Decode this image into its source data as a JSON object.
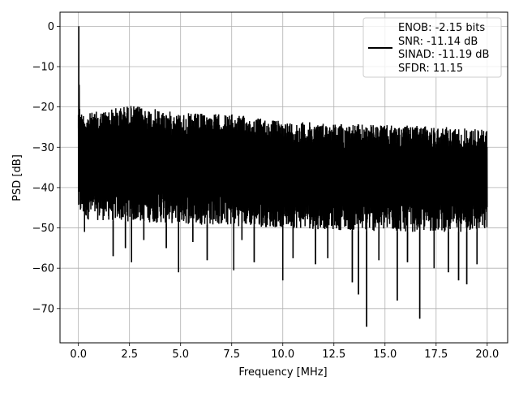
{
  "chart_data": {
    "type": "line",
    "title": "",
    "xlabel": "Frequency [MHz]",
    "ylabel": "PSD [dB]",
    "xlim": [
      -0.9,
      21.0
    ],
    "ylim": [
      -78.5,
      3.5
    ],
    "xticks": [
      0.0,
      2.5,
      5.0,
      7.5,
      10.0,
      12.5,
      15.0,
      17.5,
      20.0
    ],
    "xtick_labels": [
      "0.0",
      "2.5",
      "5.0",
      "7.5",
      "10.0",
      "12.5",
      "15.0",
      "17.5",
      "20.0"
    ],
    "yticks": [
      0,
      -10,
      -20,
      -30,
      -40,
      -50,
      -60,
      -70
    ],
    "ytick_labels": [
      "0",
      "−10",
      "−20",
      "−30",
      "−40",
      "−50",
      "−60",
      "−70"
    ],
    "grid": true,
    "legend_position": "top-right",
    "legend_lines": [
      "ENOB: -2.15 bits",
      "SNR: -11.14 dB",
      "SINAD: -11.19 dB",
      "SFDR: 11.15"
    ],
    "line_color": "#000000",
    "series": [
      {
        "x": [
          0.0,
          0.02,
          0.04,
          0.06,
          0.1,
          0.2,
          0.4,
          1.5,
          2.5,
          5.0,
          7.5,
          10.0,
          12.5,
          15.0,
          17.5,
          20.0
        ],
        "y": [
          -22,
          0,
          -14.5,
          -20.5,
          -23,
          -24,
          -25,
          -23.5,
          -24,
          -24.5,
          -25.5,
          -25.5,
          -27,
          -26.5,
          -26.5,
          -27.5
        ]
      }
    ],
    "envelope_top": {
      "x": [
        0.0,
        0.5,
        2.5,
        5.0,
        7.5,
        10.0,
        12.5,
        15.0,
        17.5,
        20.0
      ],
      "y": [
        -21,
        -21.5,
        -19.5,
        -21.5,
        -21.8,
        -23.5,
        -24,
        -24.5,
        -24.8,
        -25.5
      ]
    },
    "envelope_band": {
      "x": [
        0.0,
        0.5,
        5.0,
        10.0,
        15.0,
        20.0
      ],
      "y": [
        -47,
        -48,
        -49,
        -50,
        -51,
        -51
      ]
    },
    "minima": [
      {
        "x": 0.3,
        "y": -51
      },
      {
        "x": 1.7,
        "y": -57
      },
      {
        "x": 2.3,
        "y": -55
      },
      {
        "x": 2.6,
        "y": -58.5
      },
      {
        "x": 3.2,
        "y": -53
      },
      {
        "x": 4.3,
        "y": -55
      },
      {
        "x": 4.9,
        "y": -61
      },
      {
        "x": 5.6,
        "y": -53.5
      },
      {
        "x": 6.3,
        "y": -58
      },
      {
        "x": 7.6,
        "y": -60.5
      },
      {
        "x": 8.0,
        "y": -53
      },
      {
        "x": 8.6,
        "y": -58.5
      },
      {
        "x": 10.0,
        "y": -63
      },
      {
        "x": 10.5,
        "y": -57.5
      },
      {
        "x": 11.6,
        "y": -59
      },
      {
        "x": 12.2,
        "y": -57.5
      },
      {
        "x": 13.4,
        "y": -63.5
      },
      {
        "x": 13.7,
        "y": -66.5
      },
      {
        "x": 14.1,
        "y": -74.5
      },
      {
        "x": 14.7,
        "y": -58
      },
      {
        "x": 15.6,
        "y": -68
      },
      {
        "x": 16.1,
        "y": -58.5
      },
      {
        "x": 16.7,
        "y": -72.5
      },
      {
        "x": 17.4,
        "y": -60
      },
      {
        "x": 18.1,
        "y": -61
      },
      {
        "x": 18.6,
        "y": -63
      },
      {
        "x": 19.0,
        "y": -64
      },
      {
        "x": 19.5,
        "y": -59
      }
    ]
  }
}
